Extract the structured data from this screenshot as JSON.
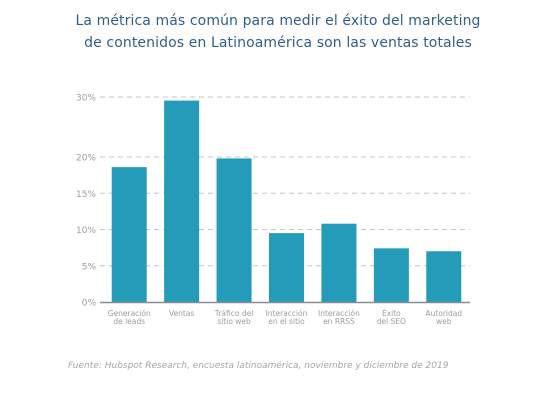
{
  "title_lines": [
    "La métrica más común para medir el éxito del marketing",
    "de contenidos en Latinoamérica son las ventas totales"
  ],
  "source": "Fuente: Hubspot Research, encuesta latinoamérica, noviembre y diciembre de 2019",
  "colors": {
    "bar": "#239bb9",
    "title": "#2f5f8a",
    "tick_text": "#9a9da4",
    "grid": "#c3c6cb",
    "axis": "#8a8d93"
  },
  "chart_data": {
    "type": "bar",
    "title": "La métrica más común para medir el éxito del marketing de contenidos en Latinoamérica son las ventas totales",
    "categories": [
      [
        "Generación",
        "de leads"
      ],
      [
        "Ventas"
      ],
      [
        "Tráfico del",
        "sitio web"
      ],
      [
        "Interacción",
        "en el sitio"
      ],
      [
        "Interacción",
        "en RRSS"
      ],
      [
        "Éxito",
        "del SEO"
      ],
      [
        "Autoridad",
        "web"
      ]
    ],
    "values": [
      18.6,
      29.4,
      19.8,
      9.5,
      10.8,
      7.4,
      7.0
    ],
    "y_ticks": [
      0,
      5,
      10,
      15,
      20,
      30
    ],
    "y_tick_labels": [
      "0%",
      "5%",
      "10%",
      "15%",
      "20%",
      "30%"
    ],
    "ylim": [
      0,
      30
    ],
    "grid": true,
    "legend": false
  }
}
